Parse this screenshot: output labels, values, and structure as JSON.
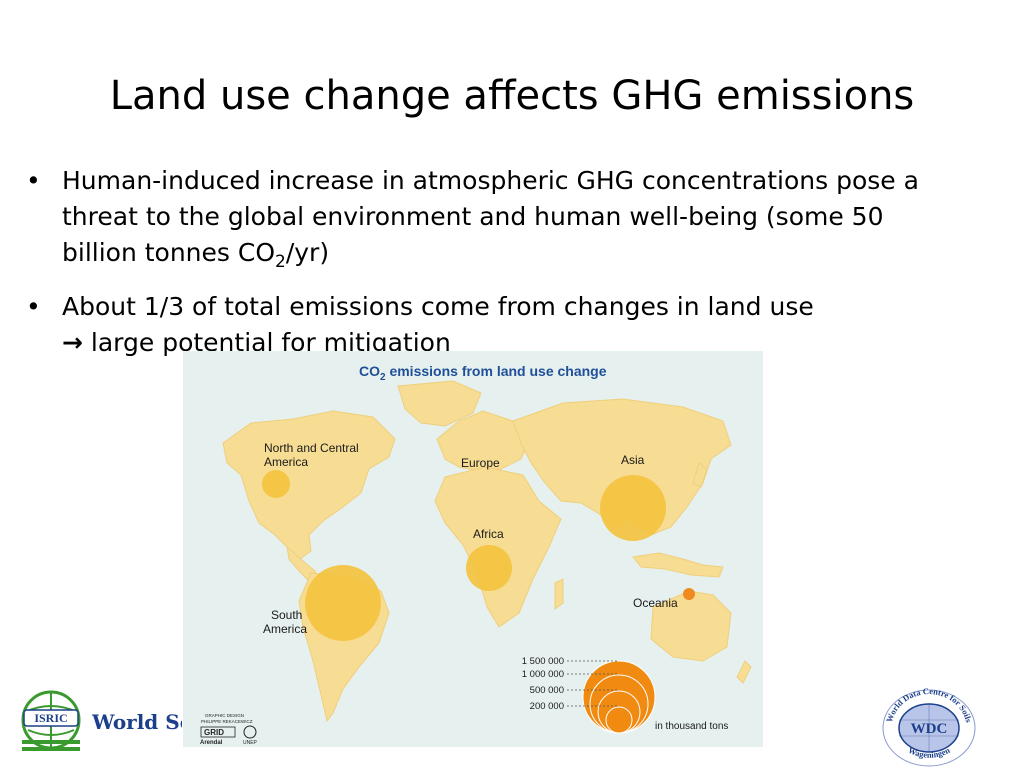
{
  "slide": {
    "title": "Land use change affects GHG emissions",
    "bullets": [
      {
        "text_before": "Human-induced increase in atmospheric GHG concentrations pose a threat to the global environment and human well-being (some 50 billion tonnes CO",
        "subscript": "2",
        "text_after": "/yr)"
      },
      {
        "text_line1": "About 1/3 of total emissions come from changes in land use",
        "arrow": "→",
        "text_line2": "large potential for mitigation"
      }
    ]
  },
  "map": {
    "title_prefix": "CO",
    "title_subscript": "2",
    "title_suffix": " emissions from land use change",
    "regions": [
      {
        "name_line1": "North and Central",
        "name_line2": "America"
      },
      {
        "name_line1": "Europe",
        "name_line2": ""
      },
      {
        "name_line1": "Asia",
        "name_line2": ""
      },
      {
        "name_line1": "Africa",
        "name_line2": ""
      },
      {
        "name_line1": "South",
        "name_line2": "America"
      },
      {
        "name_line1": "Oceania",
        "name_line2": ""
      }
    ],
    "legend": {
      "values": [
        "1 500 000",
        "1 000 000",
        "500 000",
        "200 000"
      ],
      "unit": "in thousand tons"
    },
    "credit": {
      "line1": "GRAPHIC DESIGN",
      "line2": "PHILIPPE REKACEWICZ",
      "grid": "GRID",
      "arendal": "Arendal",
      "unep": "UNEP"
    },
    "colors": {
      "land": "#f7dc94",
      "water": "#e6f1ef",
      "bubble": "#f4c23c",
      "oceania_bubble": "#ee8a1e",
      "legend_bubble": "#f08a10",
      "title": "#1f4f99"
    }
  },
  "footer": {
    "isric_label": "ISRIC",
    "isric_text": "World Soil Information",
    "wdc_center": "WDC",
    "wdc_ring_top": "World Data Centre for Soils",
    "wdc_ring_bottom": "Wageningen"
  }
}
